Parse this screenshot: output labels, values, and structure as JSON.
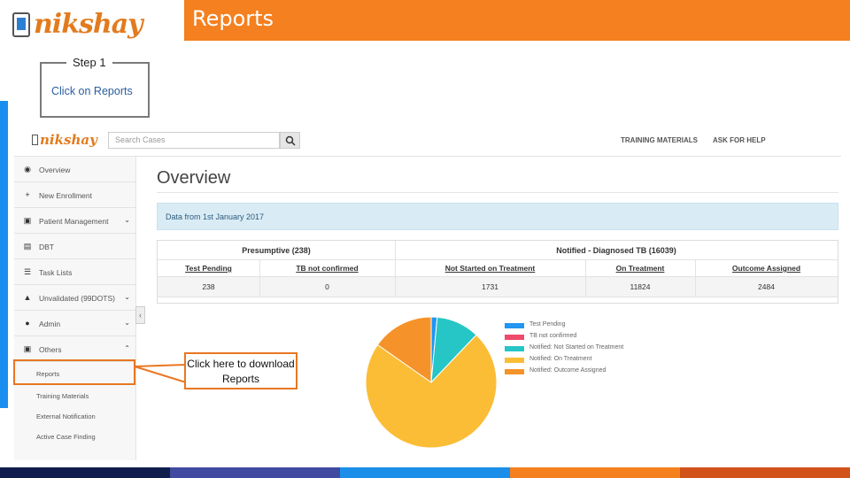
{
  "slide": {
    "logo_text": "nikshay",
    "title": "Reports",
    "step_label": "Step 1",
    "step_text": "Click on Reports",
    "callout_text": "Click here to download Reports"
  },
  "app": {
    "logo_text": "nikshay",
    "search_placeholder": "Search Cases",
    "nav": {
      "training": "TRAINING MATERIALS",
      "help": "ASK FOR HELP"
    },
    "sidebar": [
      {
        "label": "Overview",
        "icon": "dashboard-icon"
      },
      {
        "label": "New Enrollment",
        "icon": "plus-icon"
      },
      {
        "label": "Patient Management",
        "icon": "patient-icon"
      },
      {
        "label": "DBT",
        "icon": "dbt-icon"
      },
      {
        "label": "Task Lists",
        "icon": "list-icon"
      },
      {
        "label": "Unvalidated (99DOTS)",
        "icon": "alert-icon"
      },
      {
        "label": "Admin",
        "icon": "user-icon"
      },
      {
        "label": "Others",
        "icon": "others-icon"
      }
    ],
    "submenu": [
      "Reports",
      "Training Materials",
      "External Notification",
      "Active Case Finding"
    ],
    "page_title": "Overview",
    "info_text": "Data from 1st January 2017",
    "groups": {
      "presumptive": "Presumptive (238)",
      "notified": "Notified - Diagnosed TB (16039)"
    },
    "columns": [
      "Test Pending",
      "TB not confirmed",
      "Not Started on Treatment",
      "On Treatment",
      "Outcome Assigned"
    ],
    "values": [
      "238",
      "0",
      "1731",
      "11824",
      "2484"
    ]
  },
  "chart_data": {
    "type": "pie",
    "series": [
      {
        "name": "Test Pending",
        "value": 238,
        "color": "#2196f3"
      },
      {
        "name": "TB not confirmed",
        "value": 0,
        "color": "#ef4a6b"
      },
      {
        "name": "Notified: Not Started on Treatment",
        "value": 1731,
        "color": "#26c6c6"
      },
      {
        "name": "Notified: On Treatment",
        "value": 11824,
        "color": "#fbbd36"
      },
      {
        "name": "Notified: Outcome Assigned",
        "value": 2484,
        "color": "#f5932a"
      }
    ]
  },
  "footer_colors": [
    "#0f1e4d",
    "#3f4aa0",
    "#1a8ee8",
    "#f4801f",
    "#d2531a"
  ]
}
